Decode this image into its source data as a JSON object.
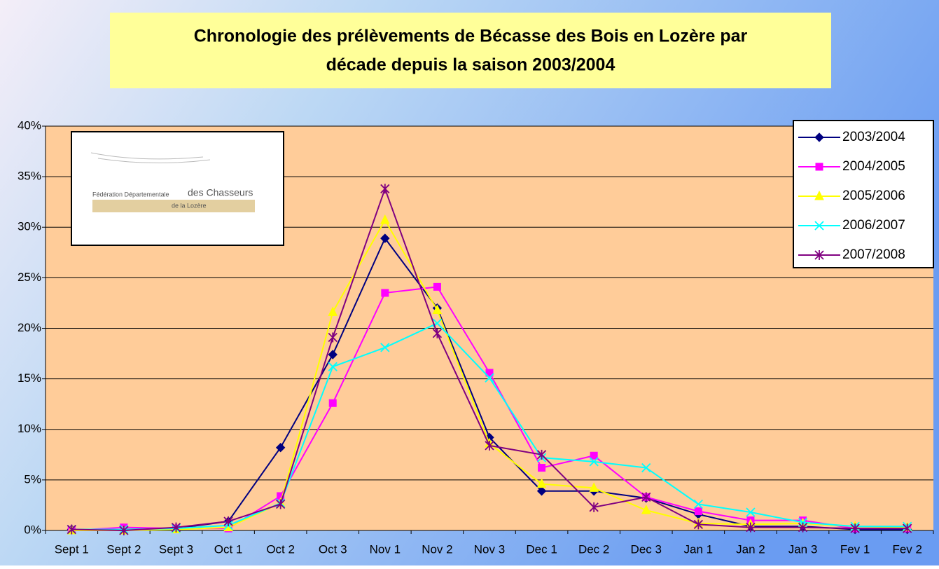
{
  "chart_data": {
    "type": "line",
    "title": [
      "Chronologie des prélèvements de Bécasse des Bois en Lozère par",
      "décade depuis la saison 2003/2004"
    ],
    "logo": {
      "line1": "Fédération Départementale",
      "line2": "des Chasseurs",
      "line3": "de la Lozère"
    },
    "categories": [
      "Sept 1",
      "Sept 2",
      "Sept 3",
      "Oct 1",
      "Oct 2",
      "Oct 3",
      "Nov 1",
      "Nov 2",
      "Nov 3",
      "Dec 1",
      "Dec 2",
      "Dec 3",
      "Jan 1",
      "Jan 2",
      "Jan 3",
      "Fev 1",
      "Fev 2"
    ],
    "series": [
      {
        "name": "2003/2004",
        "color": "#000080",
        "marker": "diamond",
        "values": [
          0.1,
          0.1,
          0.2,
          0.9,
          8.2,
          17.4,
          28.9,
          22.0,
          9.2,
          3.9,
          3.9,
          3.2,
          1.6,
          0.4,
          0.4,
          0.1,
          0.1
        ]
      },
      {
        "name": "2004/2005",
        "color": "#FF00FF",
        "marker": "square",
        "values": [
          0.0,
          0.3,
          0.2,
          0.2,
          3.4,
          12.6,
          23.5,
          24.1,
          15.6,
          6.2,
          7.4,
          3.3,
          1.9,
          1.0,
          1.0,
          0.2,
          0.2
        ]
      },
      {
        "name": "2005/2006",
        "color": "#FFFF00",
        "marker": "triangle",
        "values": [
          0.0,
          0.0,
          0.1,
          0.3,
          2.7,
          21.6,
          30.7,
          21.8,
          8.6,
          4.6,
          4.2,
          2.0,
          0.7,
          0.6,
          0.7,
          0.4,
          0.3
        ]
      },
      {
        "name": "2006/2007",
        "color": "#00FFFF",
        "marker": "x",
        "values": [
          0.1,
          0.1,
          0.2,
          0.5,
          2.7,
          16.2,
          18.1,
          20.5,
          15.1,
          7.2,
          6.8,
          6.2,
          2.6,
          1.8,
          0.8,
          0.4,
          0.4
        ]
      },
      {
        "name": "2007/2008",
        "color": "#800080",
        "marker": "star",
        "values": [
          0.1,
          0.0,
          0.3,
          0.9,
          2.6,
          19.1,
          33.8,
          19.5,
          8.4,
          7.5,
          2.3,
          3.3,
          0.6,
          0.3,
          0.3,
          0.2,
          0.2
        ]
      }
    ],
    "ylim": [
      0,
      40
    ],
    "yticks": [
      {
        "value": 0,
        "label": "0%"
      },
      {
        "value": 5,
        "label": "5%"
      },
      {
        "value": 10,
        "label": "10%"
      },
      {
        "value": 15,
        "label": "15%"
      },
      {
        "value": 20,
        "label": "20%"
      },
      {
        "value": 25,
        "label": "25%"
      },
      {
        "value": 30,
        "label": "30%"
      },
      {
        "value": 35,
        "label": "35%"
      },
      {
        "value": 40,
        "label": "40%"
      }
    ],
    "grid": true,
    "legend": "top-right"
  }
}
